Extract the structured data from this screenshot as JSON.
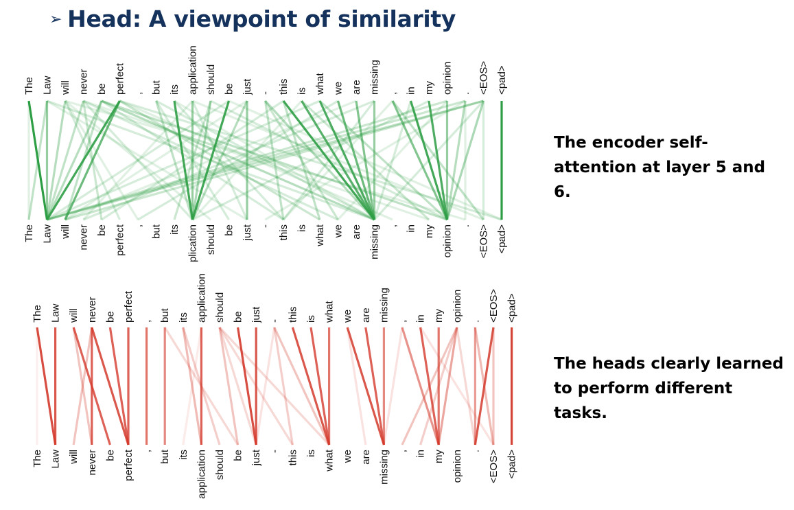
{
  "title": {
    "bullet": "➢",
    "text": "Head: A viewpoint of similarity"
  },
  "captions": {
    "top": [
      "The encoder self-",
      "attention at layer 5 and 6."
    ],
    "bottom": [
      "The heads clearly learned",
      "to perform different tasks."
    ]
  },
  "colors": {
    "title": "#14325c",
    "green_head": "#2e9e45",
    "red_head": "#d43a2c"
  },
  "tokens": [
    "The",
    "Law",
    "will",
    "never",
    "be",
    "perfect",
    ",",
    "but",
    "its",
    "application",
    "should",
    "be",
    "just",
    "-",
    "this",
    "is",
    "what",
    "we",
    "are",
    "missing",
    ",",
    "in",
    "my",
    "opinion",
    ".",
    "<EOS>",
    "<pad>"
  ],
  "top_truncated_labels": {
    "bottom_9": "plication",
    "bottom_19": "missing"
  },
  "panels": [
    {
      "id": "green",
      "color": "#2e9e45",
      "links": [
        [
          0,
          1,
          1.0
        ],
        [
          1,
          1,
          0.5
        ],
        [
          2,
          1,
          0.35
        ],
        [
          3,
          1,
          0.3
        ],
        [
          4,
          1,
          0.35
        ],
        [
          5,
          1,
          0.9
        ],
        [
          5,
          2,
          0.7
        ],
        [
          4,
          2,
          0.3
        ],
        [
          3,
          4,
          0.25
        ],
        [
          2,
          5,
          0.2
        ],
        [
          1,
          0,
          0.3
        ],
        [
          0,
          0,
          0.15
        ],
        [
          4,
          19,
          0.35
        ],
        [
          4,
          23,
          0.3
        ],
        [
          5,
          16,
          0.25
        ],
        [
          5,
          26,
          0.2
        ],
        [
          3,
          17,
          0.2
        ],
        [
          2,
          10,
          0.15
        ],
        [
          1,
          19,
          0.2
        ],
        [
          2,
          6,
          0.15
        ],
        [
          3,
          9,
          0.2
        ],
        [
          1,
          12,
          0.15
        ],
        [
          4,
          14,
          0.2
        ],
        [
          5,
          20,
          0.15
        ],
        [
          3,
          22,
          0.15
        ],
        [
          2,
          24,
          0.15
        ],
        [
          8,
          9,
          0.9
        ],
        [
          9,
          9,
          0.5
        ],
        [
          10,
          9,
          0.4
        ],
        [
          11,
          9,
          0.9
        ],
        [
          12,
          9,
          0.35
        ],
        [
          7,
          9,
          0.3
        ],
        [
          12,
          12,
          0.5
        ],
        [
          10,
          8,
          0.25
        ],
        [
          7,
          11,
          0.2
        ],
        [
          9,
          12,
          0.2
        ],
        [
          8,
          19,
          0.15
        ],
        [
          10,
          23,
          0.2
        ],
        [
          9,
          25,
          0.15
        ],
        [
          11,
          1,
          0.2
        ],
        [
          12,
          2,
          0.15
        ],
        [
          7,
          19,
          0.2
        ],
        [
          9,
          3,
          0.15
        ],
        [
          8,
          14,
          0.2
        ],
        [
          11,
          26,
          0.15
        ],
        [
          14,
          19,
          0.9
        ],
        [
          15,
          19,
          0.8
        ],
        [
          16,
          19,
          0.85
        ],
        [
          17,
          19,
          0.7
        ],
        [
          18,
          19,
          0.6
        ],
        [
          19,
          19,
          0.5
        ],
        [
          13,
          19,
          0.35
        ],
        [
          14,
          16,
          0.3
        ],
        [
          16,
          23,
          0.3
        ],
        [
          15,
          22,
          0.25
        ],
        [
          13,
          17,
          0.25
        ],
        [
          19,
          14,
          0.2
        ],
        [
          14,
          4,
          0.2
        ],
        [
          17,
          6,
          0.2
        ],
        [
          18,
          2,
          0.15
        ],
        [
          16,
          1,
          0.2
        ],
        [
          15,
          9,
          0.15
        ],
        [
          19,
          3,
          0.2
        ],
        [
          13,
          14,
          0.3
        ],
        [
          20,
          23,
          0.6
        ],
        [
          21,
          23,
          0.9
        ],
        [
          22,
          23,
          0.85
        ],
        [
          23,
          23,
          0.5
        ],
        [
          25,
          23,
          0.4
        ],
        [
          24,
          23,
          0.35
        ],
        [
          20,
          25,
          0.3
        ],
        [
          25,
          1,
          0.3
        ],
        [
          25,
          2,
          0.25
        ],
        [
          24,
          1,
          0.25
        ],
        [
          23,
          1,
          0.25
        ],
        [
          22,
          9,
          0.2
        ],
        [
          21,
          19,
          0.2
        ],
        [
          25,
          19,
          0.2
        ],
        [
          24,
          13,
          0.15
        ],
        [
          23,
          17,
          0.15
        ],
        [
          20,
          14,
          0.15
        ],
        [
          25,
          25,
          0.2
        ],
        [
          24,
          24,
          0.15
        ],
        [
          26,
          26,
          1.0
        ]
      ]
    },
    {
      "id": "red",
      "color": "#d43a2c",
      "links": [
        [
          0,
          1,
          0.9
        ],
        [
          1,
          1,
          0.85
        ],
        [
          2,
          4,
          0.8
        ],
        [
          3,
          5,
          0.85
        ],
        [
          4,
          5,
          0.8
        ],
        [
          5,
          5,
          0.8
        ],
        [
          3,
          3,
          0.8
        ],
        [
          2,
          3,
          0.3
        ],
        [
          3,
          2,
          0.3
        ],
        [
          0,
          0,
          0.08
        ],
        [
          6,
          6,
          0.7
        ],
        [
          7,
          7,
          0.6
        ],
        [
          8,
          9,
          0.35
        ],
        [
          9,
          9,
          0.8
        ],
        [
          7,
          11,
          0.2
        ],
        [
          8,
          10,
          0.25
        ],
        [
          9,
          8,
          0.1
        ],
        [
          10,
          12,
          0.2
        ],
        [
          10,
          14,
          0.2
        ],
        [
          11,
          12,
          0.9
        ],
        [
          12,
          12,
          0.85
        ],
        [
          10,
          11,
          0.3
        ],
        [
          10,
          16,
          0.2
        ],
        [
          13,
          16,
          0.3
        ],
        [
          13,
          14,
          0.25
        ],
        [
          14,
          16,
          0.85
        ],
        [
          15,
          16,
          0.8
        ],
        [
          16,
          16,
          0.7
        ],
        [
          13,
          12,
          0.15
        ],
        [
          17,
          19,
          0.85
        ],
        [
          18,
          19,
          0.8
        ],
        [
          19,
          19,
          0.6
        ],
        [
          17,
          18,
          0.15
        ],
        [
          20,
          22,
          0.55
        ],
        [
          21,
          22,
          0.8
        ],
        [
          22,
          22,
          0.7
        ],
        [
          23,
          22,
          0.45
        ],
        [
          23,
          20,
          0.3
        ],
        [
          23,
          21,
          0.25
        ],
        [
          23,
          24,
          0.2
        ],
        [
          20,
          19,
          0.15
        ],
        [
          21,
          25,
          0.15
        ],
        [
          24,
          25,
          0.35
        ],
        [
          24,
          24,
          0.5
        ],
        [
          25,
          24,
          0.85
        ],
        [
          25,
          25,
          0.3
        ],
        [
          26,
          26,
          0.95
        ]
      ]
    }
  ]
}
